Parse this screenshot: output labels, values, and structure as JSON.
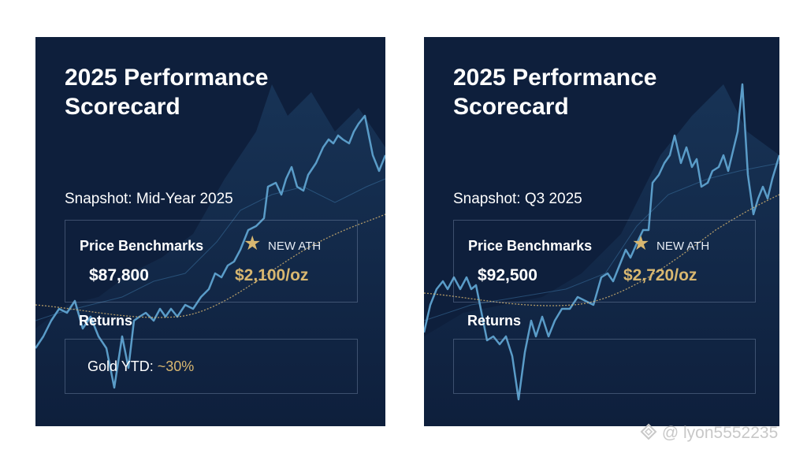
{
  "cards": [
    {
      "title": "2025 Performance Scorecard",
      "snapshot": "Snapshot: Mid-Year 2025",
      "benchmarks_label": "Price Benchmarks",
      "ath_badge": "NEW ATH",
      "btc_price": "$87,800",
      "gold_price": "$2,100/oz",
      "returns_label": "Returns",
      "returns_prefix": "Gold YTD: ",
      "returns_value": "~30%"
    },
    {
      "title": "2025 Performance Scorecard",
      "snapshot": "Snapshot: Q3 2025",
      "benchmarks_label": "Price Benchmarks",
      "ath_badge": "NEW ATH",
      "btc_price": "$92,500",
      "gold_price": "$2,720/oz",
      "returns_label": "Returns",
      "returns_prefix": "",
      "returns_value": ""
    }
  ],
  "watermark": "@ lyon5552235",
  "colors": {
    "card_bg": "#0e1f3c",
    "accent_gold": "#d8b770",
    "line_blue": "#5a9cc8"
  },
  "icons": {
    "ath": "star-icon",
    "watermark": "diamond-logo-icon"
  }
}
